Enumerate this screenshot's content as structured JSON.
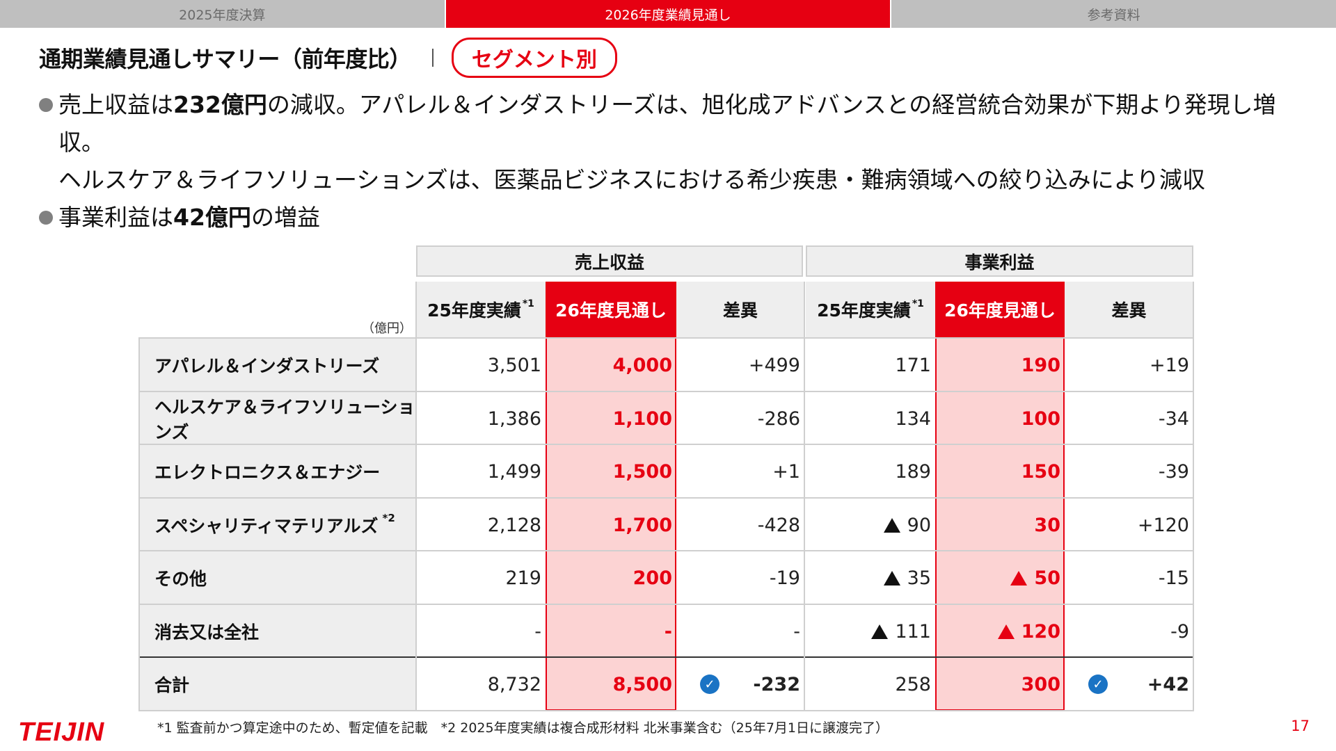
{
  "tabs": [
    "2025年度決算",
    "2026年度業績見通し",
    "参考資料"
  ],
  "title": "通期業績見通しサマリー（前年度比）",
  "pill": "セグメント別",
  "bullets": {
    "b1_pre": "売上収益は",
    "b1_num": "232億円",
    "b1_post": "の減収。アパレル＆インダストリーズは、旭化成アドバンスとの経営統合効果が下期より発現し増収。",
    "b1_cont": "ヘルスケア＆ライフソリューションズは、医薬品ビジネスにおける希少疾患・難病領域への絞り込みにより減収",
    "b2_pre": "事業利益は",
    "b2_num": "42億円",
    "b2_post": "の増益"
  },
  "table": {
    "unit": "（億円）",
    "group_revenue": "売上収益",
    "group_profit": "事業利益",
    "col_actual": "25年度実績",
    "col_actual_note": "*1",
    "col_forecast": "26年度見通し",
    "col_diff": "差異",
    "rows": [
      {
        "label": "アパレル＆インダストリーズ",
        "note": "",
        "r25": "3,501",
        "r26": "4,000",
        "rd": "+499",
        "p25": "171",
        "p25_neg": false,
        "p26": "190",
        "p26_neg": false,
        "pd": "+19"
      },
      {
        "label": "ヘルスケア＆ライフソリューションズ",
        "note": "",
        "r25": "1,386",
        "r26": "1,100",
        "rd": "-286",
        "p25": "134",
        "p25_neg": false,
        "p26": "100",
        "p26_neg": false,
        "pd": "-34"
      },
      {
        "label": "エレクトロニクス＆エナジー",
        "note": "",
        "r25": "1,499",
        "r26": "1,500",
        "rd": "+1",
        "p25": "189",
        "p25_neg": false,
        "p26": "150",
        "p26_neg": false,
        "pd": "-39"
      },
      {
        "label": "スペシャリティマテリアルズ",
        "note": "*2",
        "r25": "2,128",
        "r26": "1,700",
        "rd": "-428",
        "p25": "90",
        "p25_neg": true,
        "p26": "30",
        "p26_neg": false,
        "pd": "+120"
      },
      {
        "label": "その他",
        "note": "",
        "r25": "219",
        "r26": "200",
        "rd": "-19",
        "p25": "35",
        "p25_neg": true,
        "p26": "50",
        "p26_neg": true,
        "pd": "-15"
      },
      {
        "label": "消去又は全社",
        "note": "",
        "r25": "-",
        "r26": "-",
        "rd": "-",
        "p25": "111",
        "p25_neg": true,
        "p26": "120",
        "p26_neg": true,
        "pd": "-9"
      }
    ],
    "total": {
      "label": "合計",
      "r25": "8,732",
      "r26": "8,500",
      "rd": "-232",
      "p25": "258",
      "p26": "300",
      "pd": "+42"
    }
  },
  "footnote": "*1 監査前かつ算定途中のため、暫定値を記載　*2 2025年度実績は複合成形材料 北米事業含む（25年7月1日に譲渡完了）",
  "logo": "TEIJIN",
  "page_number": "17",
  "colors": {
    "accent": "#e60012",
    "band": "#fcd3d3",
    "check": "#1a73c4"
  },
  "icons": [
    "negative-triangle-icon",
    "check-circle-icon"
  ]
}
